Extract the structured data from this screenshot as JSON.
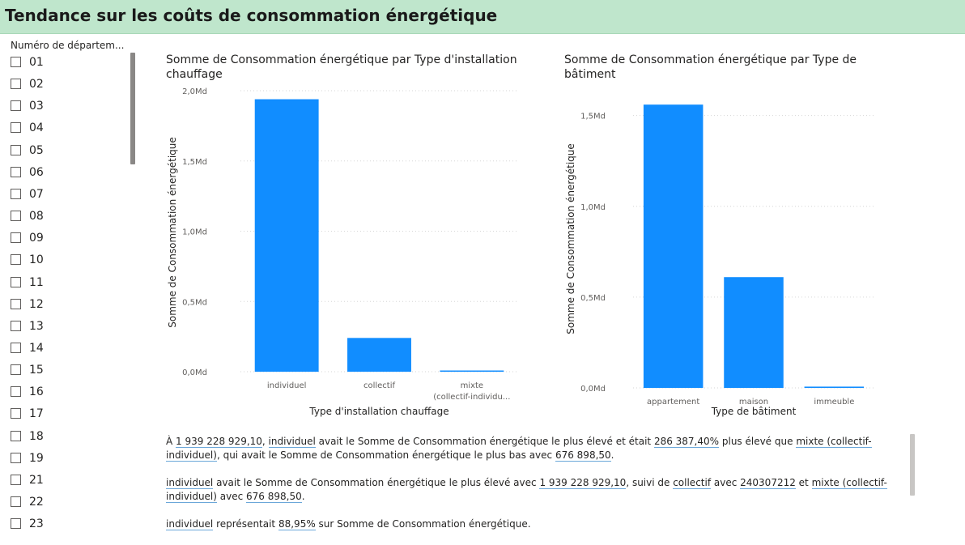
{
  "header": {
    "title": "Tendance sur les coûts de consommation énergétique"
  },
  "slicer": {
    "title": "Numéro de départem...",
    "items": [
      "01",
      "02",
      "03",
      "04",
      "05",
      "06",
      "07",
      "08",
      "09",
      "10",
      "11",
      "12",
      "13",
      "14",
      "15",
      "16",
      "17",
      "18",
      "19",
      "21",
      "22",
      "23"
    ]
  },
  "chart1": {
    "title_line1": "Somme de Consommation énergétique par Type d'installation",
    "title_line2": "chauffage"
  },
  "chart2": {
    "title_line1": "Somme de Consommation énergétique par Type de",
    "title_line2": "bâtiment"
  },
  "chart_data": [
    {
      "type": "bar",
      "title": "Somme de Consommation énergétique par Type d'installation chauffage",
      "xlabel": "Type d'installation chauffage",
      "ylabel": "Somme de Consommation énergétique",
      "categories": [
        "individuel",
        "collectif",
        "mixte (collectif-individuel)"
      ],
      "category_labels": [
        "individuel",
        "collectif",
        "mixte",
        "(collectif-individu..."
      ],
      "values": [
        1939228929.1,
        240307212,
        676898.5
      ],
      "ylim": [
        0,
        2000000000
      ],
      "yticks": [
        {
          "value": 0,
          "label": "0,0Md"
        },
        {
          "value": 500000000,
          "label": "0,5Md"
        },
        {
          "value": 1000000000,
          "label": "1,0Md"
        },
        {
          "value": 1500000000,
          "label": "1,5Md"
        },
        {
          "value": 2000000000,
          "label": "2,0Md"
        }
      ],
      "color": "#118dff",
      "grid": true
    },
    {
      "type": "bar",
      "title": "Somme de Consommation énergétique par Type de bâtiment",
      "xlabel": "Type de bâtiment",
      "ylabel": "Somme de Consommation énergétique",
      "categories": [
        "appartement",
        "maison",
        "immeuble"
      ],
      "values": [
        1560000000,
        610000000,
        7000000
      ],
      "ylim": [
        0,
        1650000000
      ],
      "yticks": [
        {
          "value": 0,
          "label": "0,0Md"
        },
        {
          "value": 500000000,
          "label": "0,5Md"
        },
        {
          "value": 1000000000,
          "label": "1,0Md"
        },
        {
          "value": 1500000000,
          "label": "1,5Md"
        }
      ],
      "color": "#118dff",
      "grid": true
    }
  ],
  "narrative": {
    "p1": {
      "pre": "À ",
      "v1": "1 939 228 929,10",
      "s1": ", ",
      "v2": "individuel",
      "s2": " avait le Somme de Consommation énergétique le plus élevé et était ",
      "v3": "286 387,40%",
      "s3": " plus élevé que ",
      "v4": "mixte (collectif-individuel)",
      "s4": ", qui avait le Somme de Consommation énergétique le plus bas avec ",
      "v5": "676 898,50",
      "s5": "."
    },
    "p2": {
      "v1": "individuel",
      "s1": " avait le Somme de Consommation énergétique le plus élevé avec ",
      "v2": "1 939 228 929,10",
      "s2": ", suivi de ",
      "v3": "collectif",
      "s3": " avec ",
      "v4": "240307212",
      "s4": " et ",
      "v5": "mixte (collectif-individuel)",
      "s5": " avec ",
      "v6": "676 898,50",
      "s6": "."
    },
    "p3": {
      "v1": "individuel",
      "s1": " représentait ",
      "v2": "88,95%",
      "s2": " sur Somme de Consommation énergétique."
    }
  }
}
